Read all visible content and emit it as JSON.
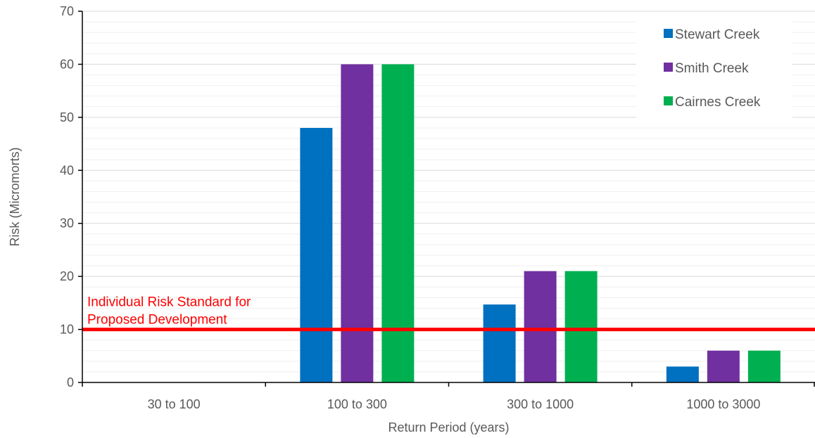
{
  "chart_data": {
    "type": "bar",
    "categories": [
      "30 to 100",
      "100 to 300",
      "300 to 1000",
      "1000 to 3000"
    ],
    "series": [
      {
        "name": "Stewart Creek",
        "values": [
          0,
          48,
          14.7,
          3
        ],
        "color": "#0070C0"
      },
      {
        "name": "Smith Creek",
        "values": [
          0,
          60,
          21,
          6
        ],
        "color": "#7030A0"
      },
      {
        "name": "Cairnes Creek",
        "values": [
          0,
          60,
          21,
          6
        ],
        "color": "#00B050"
      }
    ],
    "xlabel": "Return Period (years)",
    "ylabel": "Risk (Micromorts)",
    "ylim": [
      0,
      70
    ],
    "yticks": [
      0,
      10,
      20,
      30,
      40,
      50,
      60,
      70
    ],
    "minor_grid_step": 2,
    "grid": true,
    "legend_position": "top-right",
    "reference_line": {
      "value": 10,
      "color": "#FF0000",
      "label_lines": [
        "Individual Risk Standard for",
        "Proposed Development"
      ]
    }
  }
}
